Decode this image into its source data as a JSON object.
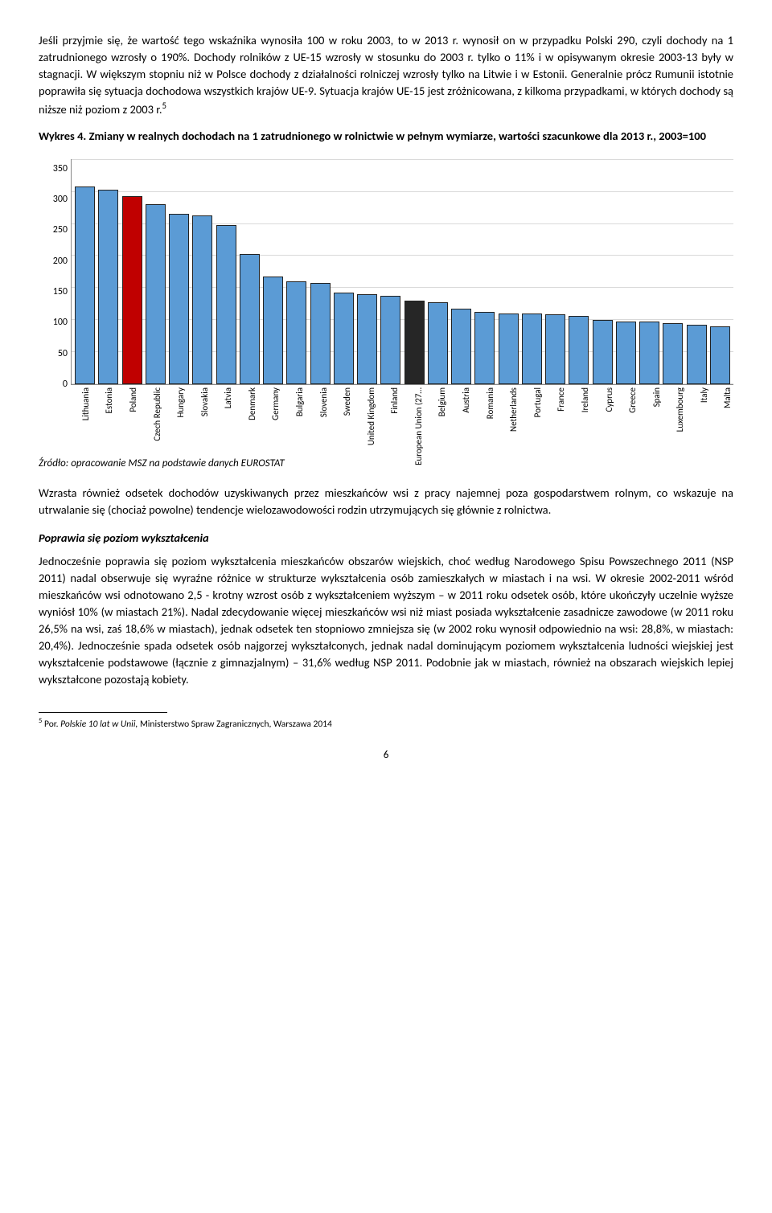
{
  "para1": "Jeśli przyjmie się, że wartość tego wskaźnika wynosiła 100 w roku 2003, to w 2013 r. wynosił on w przypadku Polski 290, czyli dochody na 1 zatrudnionego wzrosły o 190%. Dochody rolników z UE-15 wzrosły w stosunku do 2003 r. tylko o 11% i w opisywanym okresie 2003-13 były w stagnacji. W większym stopniu niż w Polsce dochody z działalności rolniczej wzrosły tylko na Litwie i w Estonii. Generalnie prócz Rumunii istotnie poprawiła się sytuacja dochodowa wszystkich krajów UE-9. Sytuacja krajów UE-15 jest zróżnicowana, z kilkoma przypadkami, w których dochody są niższe niż poziom z 2003 r.",
  "para1_sup": "5",
  "chart_title": "Wykres 4. Zmiany w realnych dochodach na 1 zatrudnionego w rolnictwie w pełnym wymiarze, wartości szacunkowe dla 2013 r., 2003=100",
  "chart": {
    "ylim": [
      0,
      350
    ],
    "ytick_step": 50,
    "yticks": [
      "350",
      "300",
      "250",
      "200",
      "150",
      "100",
      "50",
      "0"
    ],
    "bar_fill_default": "#5b9bd5",
    "bar_fill_poland": "#c00000",
    "bar_fill_eu": "#262626",
    "bar_border": "#222222",
    "grid_color": "#d9d9d9",
    "countries": [
      {
        "label": "Lithuania",
        "value": 305,
        "color": "default"
      },
      {
        "label": "Estonia",
        "value": 300,
        "color": "default"
      },
      {
        "label": "Poland",
        "value": 290,
        "color": "poland"
      },
      {
        "label": "Czech Republic",
        "value": 278,
        "color": "default"
      },
      {
        "label": "Hungary",
        "value": 262,
        "color": "default"
      },
      {
        "label": "Slovakia",
        "value": 260,
        "color": "default"
      },
      {
        "label": "Latvia",
        "value": 245,
        "color": "default"
      },
      {
        "label": "Denmark",
        "value": 200,
        "color": "default"
      },
      {
        "label": "Germany",
        "value": 165,
        "color": "default"
      },
      {
        "label": "Bulgaria",
        "value": 158,
        "color": "default"
      },
      {
        "label": "Slovenia",
        "value": 155,
        "color": "default"
      },
      {
        "label": "Sweden",
        "value": 140,
        "color": "default"
      },
      {
        "label": "United Kingdom",
        "value": 138,
        "color": "default"
      },
      {
        "label": "Finland",
        "value": 135,
        "color": "default"
      },
      {
        "label": "European Union (27…",
        "value": 128,
        "color": "eu"
      },
      {
        "label": "Belgium",
        "value": 125,
        "color": "default"
      },
      {
        "label": "Austria",
        "value": 115,
        "color": "default"
      },
      {
        "label": "Romania",
        "value": 110,
        "color": "default"
      },
      {
        "label": "Netherlands",
        "value": 108,
        "color": "default"
      },
      {
        "label": "Portugal",
        "value": 108,
        "color": "default"
      },
      {
        "label": "France",
        "value": 106,
        "color": "default"
      },
      {
        "label": "Ireland",
        "value": 104,
        "color": "default"
      },
      {
        "label": "Cyprus",
        "value": 98,
        "color": "default"
      },
      {
        "label": "Greece",
        "value": 95,
        "color": "default"
      },
      {
        "label": "Spain",
        "value": 95,
        "color": "default"
      },
      {
        "label": "Luxembourg",
        "value": 92,
        "color": "default"
      },
      {
        "label": "Italy",
        "value": 90,
        "color": "default"
      },
      {
        "label": "Malta",
        "value": 88,
        "color": "default"
      }
    ]
  },
  "source": "Źródło: opracowanie MSZ na podstawie danych EUROSTAT",
  "para2": "Wzrasta również odsetek dochodów uzyskiwanych przez mieszkańców wsi z pracy najemnej poza gospodarstwem rolnym, co wskazuje na utrwalanie się (chociaż powolne) tendencje wielozawodowości rodzin utrzymujących się głównie z rolnictwa.",
  "heading2": "Poprawia się poziom wykształcenia",
  "para3": "Jednocześnie poprawia się poziom wykształcenia mieszkańców obszarów wiejskich, choć według Narodowego Spisu Powszechnego 2011 (NSP 2011) nadal obserwuje się wyraźne różnice w strukturze wykształcenia osób zamieszkałych w miastach i na wsi. W okresie 2002-2011 wśród mieszkańców wsi odnotowano 2,5 - krotny wzrost osób z wykształceniem wyższym – w 2011 roku odsetek osób, które ukończyły uczelnie wyższe wyniósł 10% (w miastach 21%). Nadal zdecydowanie więcej mieszkańców wsi niż miast posiada wykształcenie zasadnicze zawodowe (w 2011 roku 26,5% na wsi, zaś 18,6% w miastach), jednak odsetek ten stopniowo zmniejsza się (w 2002 roku wynosił odpowiednio na wsi: 28,8%, w miastach: 20,4%). Jednocześnie spada odsetek osób najgorzej wykształconych, jednak nadal dominującym poziomem wykształcenia ludności wiejskiej jest wykształcenie podstawowe (łącznie z gimnazjalnym) – 31,6% według NSP 2011. Podobnie jak w miastach, również na obszarach wiejskich lepiej wykształcone pozostają kobiety.",
  "footnote_marker": "5",
  "footnote_text": " Por. Polskie 10 lat w Unii, Ministerstwo Spraw Zagranicznych, Warszawa 2014",
  "footnote_italic": "Polskie 10 lat w Unii,",
  "page_number": "6"
}
